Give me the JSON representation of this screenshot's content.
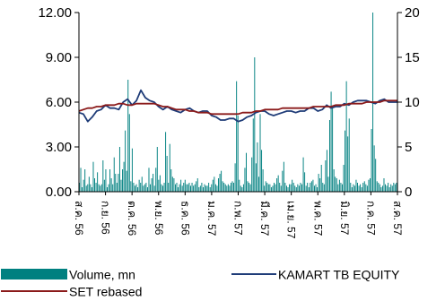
{
  "chart_data": {
    "type": "bar+line",
    "left_axis": {
      "ticks": [
        "0.00",
        "3.00",
        "6.00",
        "9.00",
        "12.00"
      ],
      "ylim": [
        0,
        12
      ]
    },
    "right_axis": {
      "ticks": [
        "0",
        "5",
        "10",
        "15",
        "20"
      ],
      "ylim": [
        0,
        20
      ]
    },
    "x_labels": [
      "ส.ค. 56",
      "ก.ย. 56",
      "ต.ค. 56",
      "พ.ย. 56",
      "ธ.ค. 56",
      "ม.ค. 57",
      "ก.พ. 57",
      "มี.ค. 57",
      "เม.ย. 57",
      "พ.ค. 57",
      "มิ.ย. 57",
      "ก.ค. 57",
      "ส.ค. 57"
    ],
    "series": [
      {
        "name": "Volume, mn",
        "kind": "bar",
        "axis": "left",
        "color": "#008080",
        "values": [
          0.6,
          1.6,
          0.3,
          0.8,
          1.5,
          0.4,
          0.5,
          1.0,
          0.5,
          0.3,
          2.0,
          0.9,
          0.6,
          1.3,
          0.5,
          0.4,
          0.5,
          2.1,
          0.8,
          1.5,
          0.3,
          0.5,
          1.5,
          0.9,
          0.5,
          2.3,
          1.2,
          0.6,
          1.2,
          3.0,
          0.8,
          1.5,
          2.0,
          4.1,
          1.4,
          7.5,
          5.2,
          0.7,
          2.9,
          0.6,
          0.4,
          0.5,
          0.3,
          0.8,
          0.6,
          1.0,
          0.4,
          0.5,
          0.6,
          0.3,
          1.6,
          0.5,
          0.9,
          1.2,
          0.4,
          1.6,
          3.0,
          0.8,
          1.1,
          0.5,
          0.4,
          0.6,
          4.0,
          2.4,
          0.6,
          3.2,
          1.5,
          1.0,
          0.9,
          0.5,
          0.6,
          0.3,
          0.5,
          0.8,
          0.4,
          0.6,
          0.8,
          0.5,
          0.5,
          0.6,
          0.4,
          0.6,
          0.4,
          0.5,
          0.7,
          0.9,
          0.3,
          0.4,
          0.6,
          0.3,
          0.5,
          0.4,
          0.4,
          0.6,
          0.3,
          0.5,
          0.8,
          1.0,
          0.5,
          0.4,
          0.9,
          1.2,
          1.4,
          0.7,
          0.6,
          0.5,
          0.4,
          0.5,
          0.4,
          0.6,
          0.7,
          0.6,
          1.9,
          7.4,
          5.1,
          0.8,
          0.4,
          0.3,
          0.5,
          1.6,
          2.6,
          0.7,
          0.6,
          0.5,
          2.3,
          4.9,
          9.0,
          1.9,
          3.3,
          1.0,
          5.2,
          2.8,
          1.5,
          0.4,
          0.7,
          0.6,
          0.5,
          0.5,
          0.3,
          0.4,
          0.6,
          0.5,
          0.9,
          1.1,
          0.6,
          0.4,
          1.4,
          2.0,
          0.6,
          0.4,
          0.3,
          0.5,
          0.5,
          0.8,
          0.6,
          0.4,
          0.3,
          0.5,
          0.4,
          0.6,
          0.5,
          2.3,
          1.3,
          0.4,
          0.6,
          0.3,
          0.6,
          0.7,
          0.8,
          0.4,
          0.5,
          0.3,
          1.2,
          0.9,
          1.8,
          0.6,
          0.5,
          2.1,
          2.8,
          1.0,
          4.8,
          6.7,
          5.6,
          1.5,
          1.0,
          0.9,
          0.5,
          0.8,
          0.6,
          0.5,
          1.8,
          4.1,
          7.4,
          3.7,
          4.9,
          0.6,
          0.3,
          0.5,
          0.4,
          0.8,
          0.6,
          0.4,
          0.5,
          0.3,
          0.6,
          0.7,
          0.5,
          0.4,
          0.8,
          0.9,
          4.2,
          12.0,
          3.1,
          2.2,
          0.7,
          0.6,
          0.5,
          0.3,
          0.4,
          0.9,
          0.5,
          0.4,
          0.6,
          0.3,
          0.5,
          0.4,
          0.6,
          0.5,
          0.6
        ]
      },
      {
        "name": "KAMART TB EQUITY",
        "kind": "line",
        "axis": "left",
        "color": "#1f3c78",
        "values": [
          5.3,
          5.2,
          4.7,
          5.0,
          5.4,
          5.5,
          5.8,
          5.6,
          5.6,
          5.5,
          6.0,
          6.2,
          5.8,
          6.1,
          6.8,
          6.3,
          6.1,
          6.0,
          5.7,
          5.5,
          5.7,
          5.5,
          5.4,
          5.3,
          5.5,
          5.6,
          5.4,
          5.3,
          5.4,
          5.4,
          5.1,
          5.0,
          4.8,
          4.8,
          4.9,
          4.9,
          4.7,
          4.8,
          5.0,
          5.1,
          5.3,
          5.4,
          5.4,
          5.2,
          5.1,
          5.2,
          5.3,
          5.4,
          5.4,
          5.3,
          5.4,
          5.4,
          5.6,
          5.6,
          5.4,
          5.5,
          5.8,
          5.6,
          5.7,
          5.7,
          5.9,
          5.8,
          6.0,
          6.1,
          6.1,
          6.1,
          6.0,
          5.9,
          6.1,
          6.2,
          6.0,
          6.0,
          6.0
        ]
      },
      {
        "name": "SET rebased",
        "kind": "line",
        "axis": "left",
        "color": "#8b1a1a",
        "values": [
          5.4,
          5.5,
          5.6,
          5.6,
          5.7,
          5.7,
          5.8,
          5.8,
          5.8,
          5.9,
          5.9,
          5.8,
          5.8,
          5.9,
          5.9,
          5.9,
          5.9,
          5.9,
          5.8,
          5.7,
          5.7,
          5.6,
          5.5,
          5.5,
          5.5,
          5.4,
          5.4,
          5.3,
          5.3,
          5.3,
          5.2,
          5.2,
          5.2,
          5.2,
          5.2,
          5.2,
          5.2,
          5.3,
          5.3,
          5.3,
          5.4,
          5.4,
          5.5,
          5.5,
          5.5,
          5.5,
          5.6,
          5.6,
          5.6,
          5.6,
          5.6,
          5.6,
          5.6,
          5.7,
          5.7,
          5.7,
          5.7,
          5.7,
          5.8,
          5.8,
          5.8,
          5.9,
          5.9,
          5.9,
          5.9,
          6.0,
          6.0,
          6.0,
          6.0,
          6.1,
          6.1,
          6.1,
          6.1
        ]
      }
    ],
    "legend": {
      "placement": "bottom"
    }
  }
}
